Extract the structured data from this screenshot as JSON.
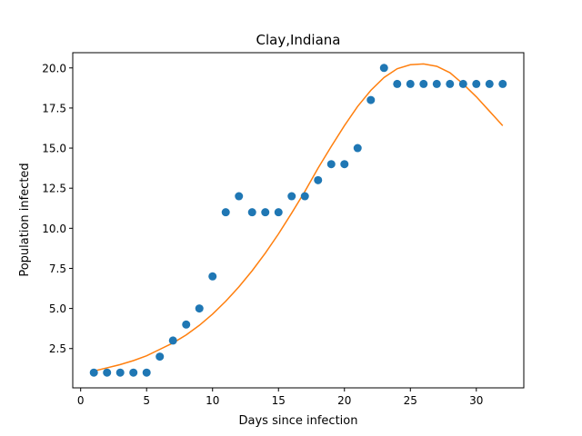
{
  "chart_data": {
    "type": "scatter",
    "title": "Clay,Indiana",
    "xlabel": "Days since infection",
    "ylabel": "Population infected",
    "xlim": [
      -0.6,
      33.6
    ],
    "ylim": [
      0.05,
      20.95
    ],
    "xticks": [
      0,
      5,
      10,
      15,
      20,
      25,
      30
    ],
    "yticks": [
      2.5,
      5.0,
      7.5,
      10.0,
      12.5,
      15.0,
      17.5,
      20.0
    ],
    "ytick_labels": [
      "2.5",
      "5.0",
      "7.5",
      "10.0",
      "12.5",
      "15.0",
      "17.5",
      "20.0"
    ],
    "grid": false,
    "series": [
      {
        "kind": "scatter",
        "color": "#1f77b4",
        "x": [
          1,
          2,
          3,
          4,
          5,
          6,
          7,
          8,
          9,
          10,
          11,
          12,
          13,
          14,
          15,
          16,
          17,
          18,
          19,
          20,
          21,
          22,
          23,
          24,
          25,
          26,
          27,
          28,
          29,
          30,
          31,
          32
        ],
        "y": [
          1,
          1,
          1,
          1,
          1,
          2,
          3,
          4,
          5,
          7,
          11,
          12,
          11,
          11,
          11,
          12,
          12,
          13,
          14,
          14,
          15,
          18,
          20,
          19,
          19,
          19,
          19,
          19,
          19,
          19,
          19,
          19
        ]
      },
      {
        "kind": "line",
        "color": "#ff7f0e",
        "x": [
          1,
          2,
          3,
          4,
          5,
          6,
          7,
          8,
          9,
          10,
          11,
          12,
          13,
          14,
          15,
          16,
          17,
          18,
          19,
          20,
          21,
          22,
          23,
          24,
          25,
          26,
          27,
          28,
          29,
          30,
          31,
          32
        ],
        "y": [
          1.1,
          1.3,
          1.5,
          1.75,
          2.05,
          2.45,
          2.85,
          3.35,
          3.95,
          4.65,
          5.45,
          6.35,
          7.35,
          8.45,
          9.65,
          10.95,
          12.3,
          13.75,
          15.1,
          16.4,
          17.6,
          18.6,
          19.4,
          19.95,
          20.2,
          20.25,
          20.1,
          19.7,
          19.0,
          18.2,
          17.3,
          16.4
        ]
      }
    ]
  }
}
